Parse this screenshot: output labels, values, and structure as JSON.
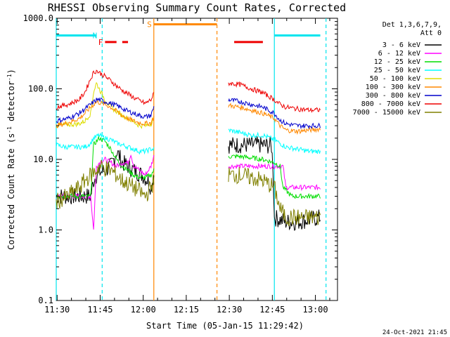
{
  "chart_data": {
    "type": "line",
    "title": "RHESSI Observing Summary Count Rates, Corrected",
    "xlabel": "Start Time (05-Jan-15 11:29:42)",
    "ylabel": "Corrected Count Rate (s⁻¹ detector⁻¹)",
    "ylabel_parts": {
      "main": "Corrected Count Rate (s",
      "sup1": "-1",
      "mid": " detector",
      "sup2": "-1",
      "end": ")"
    },
    "y_scale": "log",
    "ylim": [
      0.1,
      1000
    ],
    "xlim_minutes": [
      0,
      98
    ],
    "x_tick_labels": [
      "11:30",
      "11:45",
      "12:00",
      "12:15",
      "12:30",
      "12:45",
      "13:00"
    ],
    "x_tick_minutes": [
      0.3,
      15.3,
      30.3,
      45.3,
      60.3,
      75.3,
      90.3
    ],
    "y_tick_labels": [
      "0.1",
      "1.0",
      "10.0",
      "100.0",
      "1000.0"
    ],
    "y_tick_values": [
      0.1,
      1,
      10,
      100,
      1000
    ],
    "legend_header": [
      "Det 1,3,6,7,9,",
      "Att 0"
    ],
    "legend_placement": "right",
    "gap_minutes": [
      34,
      60
    ],
    "series": [
      {
        "name": "3 - 6 keV",
        "color": "#000000",
        "points": [
          [
            0,
            3
          ],
          [
            12,
            3
          ],
          [
            13,
            5
          ],
          [
            14,
            6
          ],
          [
            15,
            6.5
          ],
          [
            17,
            7
          ],
          [
            19,
            8
          ],
          [
            20,
            10
          ],
          [
            21,
            13
          ],
          [
            22,
            11
          ],
          [
            23,
            9
          ],
          [
            25,
            8
          ],
          [
            27,
            7
          ],
          [
            30,
            6
          ],
          [
            32,
            5
          ],
          [
            33,
            4
          ],
          [
            34,
            6
          ]
        ],
        "points2": [
          [
            60,
            16
          ],
          [
            64,
            16
          ],
          [
            68,
            16
          ],
          [
            72,
            16
          ],
          [
            75,
            15.5
          ],
          [
            75.5,
            8
          ],
          [
            76,
            1.5
          ],
          [
            80,
            1.3
          ],
          [
            84,
            1.3
          ],
          [
            88,
            1.4
          ],
          [
            92,
            1.5
          ]
        ]
      },
      {
        "name": "6 - 12 keV",
        "color": "#ff00ff",
        "points": [
          [
            0,
            3
          ],
          [
            12,
            3
          ],
          [
            13,
            1
          ],
          [
            14,
            8
          ],
          [
            15,
            9
          ],
          [
            17,
            10
          ],
          [
            19,
            9
          ],
          [
            21,
            8
          ],
          [
            23,
            9
          ],
          [
            25,
            9
          ],
          [
            26,
            12
          ],
          [
            27,
            8
          ],
          [
            29,
            7
          ],
          [
            31,
            6
          ],
          [
            33,
            8
          ],
          [
            34,
            11
          ]
        ],
        "points2": [
          [
            60,
            8
          ],
          [
            64,
            8
          ],
          [
            68,
            8
          ],
          [
            72,
            8
          ],
          [
            76,
            8
          ],
          [
            79,
            8
          ],
          [
            80,
            4
          ],
          [
            84,
            4
          ],
          [
            88,
            4
          ],
          [
            92,
            4
          ]
        ]
      },
      {
        "name": "12 - 25 keV",
        "color": "#00dd00",
        "points": [
          [
            0,
            3
          ],
          [
            12,
            3
          ],
          [
            13,
            16
          ],
          [
            14,
            18
          ],
          [
            15,
            20
          ],
          [
            17,
            18
          ],
          [
            19,
            14
          ],
          [
            21,
            10
          ],
          [
            23,
            8
          ],
          [
            25,
            7
          ],
          [
            27,
            6
          ],
          [
            29,
            5.5
          ],
          [
            31,
            5.5
          ],
          [
            33,
            6
          ],
          [
            34,
            7
          ]
        ],
        "points2": [
          [
            60,
            11
          ],
          [
            64,
            11
          ],
          [
            68,
            10.5
          ],
          [
            72,
            10
          ],
          [
            76,
            9
          ],
          [
            78,
            8
          ],
          [
            79,
            4
          ],
          [
            82,
            3
          ],
          [
            86,
            3
          ],
          [
            90,
            3
          ],
          [
            92,
            3
          ]
        ]
      },
      {
        "name": "25 - 50 keV",
        "color": "#00ffff",
        "points": [
          [
            0,
            16
          ],
          [
            3,
            15
          ],
          [
            6,
            15
          ],
          [
            8,
            15
          ],
          [
            10,
            15
          ],
          [
            12,
            17
          ],
          [
            13,
            20
          ],
          [
            14,
            21
          ],
          [
            15,
            22
          ],
          [
            17,
            20
          ],
          [
            19,
            19
          ],
          [
            21,
            17
          ],
          [
            23,
            16
          ],
          [
            25,
            15
          ],
          [
            27,
            14
          ],
          [
            29,
            13
          ],
          [
            31,
            13
          ],
          [
            33,
            14
          ],
          [
            34,
            14
          ]
        ],
        "points2": [
          [
            60,
            26
          ],
          [
            64,
            24
          ],
          [
            68,
            22
          ],
          [
            72,
            22
          ],
          [
            76,
            19
          ],
          [
            80,
            15
          ],
          [
            84,
            14
          ],
          [
            88,
            13
          ],
          [
            92,
            13
          ]
        ]
      },
      {
        "name": "50 - 100 keV",
        "color": "#dddd00",
        "points": [
          [
            0,
            30
          ],
          [
            4,
            31
          ],
          [
            8,
            32
          ],
          [
            10,
            35
          ],
          [
            12,
            45
          ],
          [
            13,
            90
          ],
          [
            14,
            120
          ],
          [
            15,
            100
          ],
          [
            17,
            70
          ],
          [
            19,
            55
          ],
          [
            21,
            48
          ],
          [
            23,
            42
          ],
          [
            25,
            38
          ],
          [
            27,
            34
          ],
          [
            29,
            30
          ],
          [
            31,
            30
          ],
          [
            33,
            32
          ],
          [
            34,
            38
          ]
        ],
        "points2": []
      },
      {
        "name": "100 - 300 keV",
        "color": "#ff8800",
        "points": [
          [
            0,
            30
          ],
          [
            4,
            33
          ],
          [
            8,
            38
          ],
          [
            10,
            45
          ],
          [
            12,
            55
          ],
          [
            14,
            65
          ],
          [
            15,
            64
          ],
          [
            17,
            60
          ],
          [
            19,
            55
          ],
          [
            21,
            48
          ],
          [
            23,
            42
          ],
          [
            25,
            38
          ],
          [
            27,
            35
          ],
          [
            29,
            33
          ],
          [
            31,
            32
          ],
          [
            33,
            33
          ],
          [
            34,
            40
          ]
        ],
        "points2": [
          [
            60,
            58
          ],
          [
            64,
            55
          ],
          [
            68,
            50
          ],
          [
            72,
            45
          ],
          [
            76,
            38
          ],
          [
            78,
            30
          ],
          [
            80,
            26
          ],
          [
            84,
            25
          ],
          [
            88,
            26
          ],
          [
            92,
            27
          ]
        ]
      },
      {
        "name": "300 - 800 keV",
        "color": "#0000cc",
        "points": [
          [
            0,
            35
          ],
          [
            4,
            38
          ],
          [
            8,
            45
          ],
          [
            10,
            52
          ],
          [
            12,
            60
          ],
          [
            14,
            70
          ],
          [
            15,
            70
          ],
          [
            17,
            66
          ],
          [
            19,
            62
          ],
          [
            21,
            58
          ],
          [
            23,
            53
          ],
          [
            25,
            48
          ],
          [
            27,
            45
          ],
          [
            29,
            42
          ],
          [
            31,
            40
          ],
          [
            33,
            42
          ],
          [
            34,
            55
          ]
        ],
        "points2": [
          [
            60,
            70
          ],
          [
            64,
            66
          ],
          [
            68,
            60
          ],
          [
            72,
            55
          ],
          [
            76,
            45
          ],
          [
            78,
            36
          ],
          [
            80,
            32
          ],
          [
            84,
            30
          ],
          [
            88,
            30
          ],
          [
            92,
            30
          ]
        ]
      },
      {
        "name": "800 - 7000 keV",
        "color": "#ee0000",
        "points": [
          [
            0,
            55
          ],
          [
            4,
            60
          ],
          [
            8,
            70
          ],
          [
            10,
            90
          ],
          [
            12,
            140
          ],
          [
            13,
            170
          ],
          [
            14,
            180
          ],
          [
            15,
            170
          ],
          [
            17,
            150
          ],
          [
            19,
            130
          ],
          [
            21,
            110
          ],
          [
            23,
            95
          ],
          [
            25,
            85
          ],
          [
            27,
            75
          ],
          [
            29,
            68
          ],
          [
            31,
            62
          ],
          [
            33,
            70
          ],
          [
            34,
            85
          ]
        ],
        "points2": [
          [
            60,
            120
          ],
          [
            64,
            115
          ],
          [
            68,
            100
          ],
          [
            72,
            88
          ],
          [
            76,
            70
          ],
          [
            78,
            60
          ],
          [
            80,
            55
          ],
          [
            84,
            52
          ],
          [
            88,
            50
          ],
          [
            92,
            50
          ]
        ]
      },
      {
        "name": "7000 - 15000 keV",
        "color": "#808000",
        "points": [
          [
            0,
            2.5
          ],
          [
            4,
            3
          ],
          [
            6,
            3.5
          ],
          [
            8,
            4
          ],
          [
            10,
            5
          ],
          [
            12,
            6
          ],
          [
            14,
            7
          ],
          [
            15,
            8
          ],
          [
            17,
            7.5
          ],
          [
            19,
            7
          ],
          [
            21,
            6
          ],
          [
            23,
            5
          ],
          [
            25,
            4.5
          ],
          [
            27,
            4
          ],
          [
            29,
            3.5
          ],
          [
            31,
            3
          ],
          [
            33,
            4
          ],
          [
            34,
            5
          ]
        ],
        "points2": [
          [
            60,
            6
          ],
          [
            64,
            6
          ],
          [
            68,
            5.5
          ],
          [
            72,
            5
          ],
          [
            76,
            4
          ],
          [
            78,
            2
          ],
          [
            80,
            1.5
          ],
          [
            84,
            1.5
          ],
          [
            88,
            1.5
          ],
          [
            92,
            1.5
          ]
        ]
      }
    ],
    "flag_bars": [
      {
        "label": "",
        "color": "#00e5ee",
        "start": 0,
        "end": 14,
        "level": 570
      },
      {
        "label": "N",
        "color": "#00e5ee",
        "start": 15,
        "end": 15,
        "level": 570
      },
      {
        "label": "",
        "color": "#00e5ee",
        "start": 76,
        "end": 92,
        "level": 570
      },
      {
        "label": "S",
        "color": "#ff8800",
        "start": 34,
        "end": 56,
        "level": 820
      },
      {
        "label": "F",
        "color": "#ee0000",
        "start": 17,
        "end": 21,
        "level": 460
      },
      {
        "label": "",
        "color": "#ee0000",
        "start": 23,
        "end": 25,
        "level": 460
      },
      {
        "label": "",
        "color": "#ee0000",
        "start": 62,
        "end": 72,
        "level": 460
      }
    ],
    "vertical_lines": [
      {
        "minute": 0,
        "color": "#00e5ee",
        "style": "solid"
      },
      {
        "minute": 16,
        "color": "#00e5ee",
        "style": "dashed"
      },
      {
        "minute": 34,
        "color": "#ff8800",
        "style": "solid"
      },
      {
        "minute": 56,
        "color": "#ff8800",
        "style": "dashed"
      },
      {
        "minute": 76,
        "color": "#00e5ee",
        "style": "solid"
      },
      {
        "minute": 94,
        "color": "#00e5ee",
        "style": "dashed"
      }
    ],
    "footer_stamp": "24-Oct-2021 21:45"
  }
}
